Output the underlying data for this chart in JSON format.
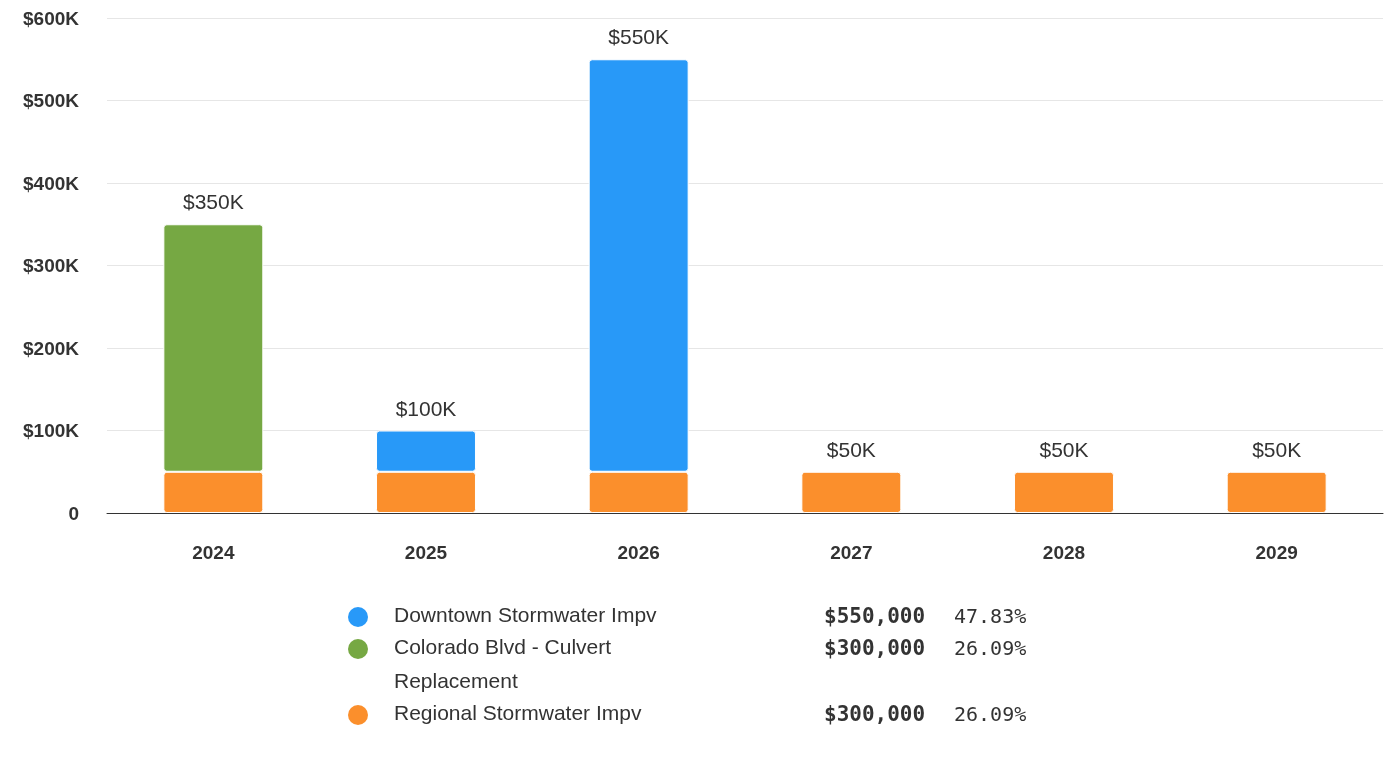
{
  "chart_data": {
    "type": "bar",
    "stacked": true,
    "categories": [
      "2024",
      "2025",
      "2026",
      "2027",
      "2028",
      "2029"
    ],
    "series": [
      {
        "name": "Regional Stormwater Impv",
        "color": "#fb8f2c",
        "values": [
          50000,
          50000,
          50000,
          50000,
          50000,
          50000
        ]
      },
      {
        "name": "Colorado Blvd - Culvert Replacement",
        "color": "#76a843",
        "values": [
          300000,
          null,
          null,
          null,
          null,
          null
        ]
      },
      {
        "name": "Downtown Stormwater Impv",
        "color": "#2899f8",
        "values": [
          null,
          50000,
          500000,
          null,
          null,
          null
        ]
      }
    ],
    "ylim": [
      0,
      600000
    ],
    "yticks": [
      0,
      {
        "value": 100000,
        "label": "$100K"
      },
      {
        "value": 200000,
        "label": "$200K"
      },
      {
        "value": 300000,
        "label": "$300K"
      },
      {
        "value": 400000,
        "label": "$400K"
      },
      {
        "value": 500000,
        "label": "$500K"
      },
      {
        "value": 600000,
        "label": "$600K"
      }
    ],
    "totals": [
      "$350K",
      "$100K",
      "$550K",
      "$50K",
      "$50K",
      "$50K"
    ],
    "annotations": [
      "$550,000",
      "47.83%",
      "$300,000",
      "26.09%",
      "$300,000",
      "26.09%"
    ],
    "grid": "y",
    "legend": "bottom"
  }
}
